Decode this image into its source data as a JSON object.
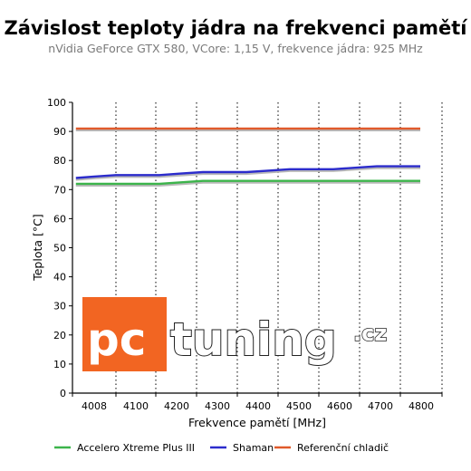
{
  "chart_data": {
    "type": "line",
    "title": "Závislost teploty jádra na frekvenci pamětí",
    "subtitle": "nVidia GeForce GTX 580, VCore: 1,15 V, frekvence jádra: 925 MHz",
    "xlabel": "Frekvence pamětí [MHz]",
    "ylabel": "Teplota [°C]",
    "categories": [
      "4008",
      "4100",
      "4200",
      "4300",
      "4400",
      "4500",
      "4600",
      "4700",
      "4800"
    ],
    "ylim": [
      0,
      100
    ],
    "yticks": [
      0,
      10,
      20,
      30,
      40,
      50,
      60,
      70,
      80,
      90,
      100
    ],
    "grid": "vertical dotted",
    "legend_position": "bottom",
    "series": [
      {
        "name": "Accelero Xtreme Plus III",
        "color": "#3cb44b",
        "x": [
          4008,
          4050,
          4100,
          4150,
          4200,
          4250,
          4300,
          4350,
          4400,
          4450,
          4500,
          4550,
          4600,
          4650,
          4700,
          4750,
          4800
        ],
        "values": [
          72,
          72,
          72,
          72,
          72,
          72.5,
          73,
          73,
          73,
          73,
          73,
          73,
          73,
          73,
          73,
          73,
          73
        ]
      },
      {
        "name": "Shaman",
        "color": "#2c2ccc",
        "x": [
          4008,
          4050,
          4100,
          4150,
          4200,
          4250,
          4300,
          4350,
          4400,
          4450,
          4500,
          4550,
          4600,
          4650,
          4700,
          4750,
          4800
        ],
        "values": [
          74,
          74.5,
          75,
          75,
          75,
          75.5,
          76,
          76,
          76,
          76.5,
          77,
          77,
          77,
          77.5,
          78,
          78,
          78
        ]
      },
      {
        "name": "Referenční chladič",
        "color": "#e05a2b",
        "x": [
          4008,
          4050,
          4100,
          4150,
          4200,
          4250,
          4300,
          4350,
          4400,
          4450,
          4500,
          4550,
          4600,
          4650,
          4700,
          4750,
          4800
        ],
        "values": [
          91,
          91,
          91,
          91,
          91,
          91,
          91,
          91,
          91,
          91,
          91,
          91,
          91,
          91,
          91,
          91,
          91
        ]
      }
    ]
  },
  "watermark": {
    "pc": "pc",
    "tuning": "tuning",
    "cz": ".cz",
    "box_color": "#f26522"
  }
}
